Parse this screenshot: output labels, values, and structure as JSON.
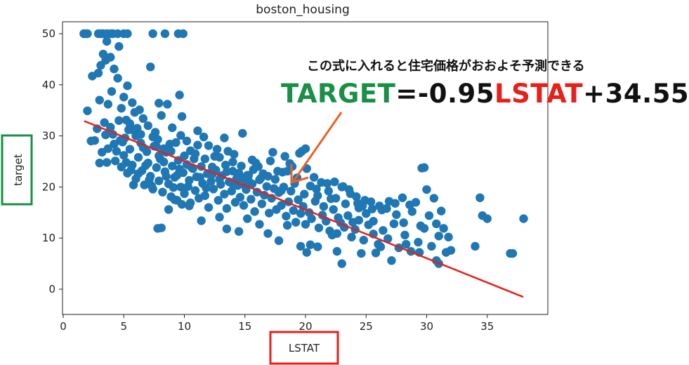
{
  "annotation": {
    "caption": "この式に入れると住宅価格がおおよそ予測できる",
    "equation": {
      "target_word": "TARGET",
      "op1": "=-0.95",
      "lstat_word": "LSTAT",
      "op2": "+34.55"
    },
    "colors": {
      "target": "#1a8f45",
      "lstat": "#e8201a",
      "arrow": "#e8622a",
      "ylabel_box": "#1a8f45",
      "xlabel_box": "#e8201a"
    }
  },
  "chart_data": {
    "type": "scatter",
    "title": "boston_housing",
    "xlabel": "LSTAT",
    "ylabel": "target",
    "xlim": [
      0,
      40
    ],
    "ylim": [
      -5,
      52
    ],
    "xticks": [
      0,
      5,
      10,
      15,
      20,
      25,
      30,
      35
    ],
    "yticks": [
      0,
      10,
      20,
      30,
      40,
      50
    ],
    "point_color": "#1f77b4",
    "line_color": "#e8201a",
    "regression": {
      "slope": -0.95,
      "intercept": 34.55,
      "x_range": [
        1.73,
        37.97
      ]
    },
    "points": [
      [
        1.7,
        50
      ],
      [
        1.9,
        50
      ],
      [
        2.0,
        50
      ],
      [
        2.9,
        50
      ],
      [
        3.1,
        50
      ],
      [
        3.3,
        50
      ],
      [
        3.6,
        50
      ],
      [
        3.9,
        50
      ],
      [
        4.1,
        50
      ],
      [
        4.5,
        50
      ],
      [
        5.0,
        50
      ],
      [
        5.3,
        50
      ],
      [
        7.4,
        50
      ],
      [
        8.4,
        50
      ],
      [
        9.5,
        50
      ],
      [
        9.9,
        50
      ],
      [
        2.0,
        34.9
      ],
      [
        2.4,
        41.7
      ],
      [
        2.9,
        42.3
      ],
      [
        3.0,
        37.0
      ],
      [
        3.1,
        43.8
      ],
      [
        3.3,
        46.0
      ],
      [
        3.5,
        44.8
      ],
      [
        3.6,
        48.5
      ],
      [
        3.7,
        36.2
      ],
      [
        3.9,
        45.4
      ],
      [
        4.0,
        38.7
      ],
      [
        4.2,
        43.1
      ],
      [
        4.5,
        41.3
      ],
      [
        4.6,
        47.5
      ],
      [
        4.8,
        35.4
      ],
      [
        5.0,
        37.6
      ],
      [
        5.2,
        33.1
      ],
      [
        5.3,
        39.8
      ],
      [
        5.5,
        32.4
      ],
      [
        5.7,
        36.5
      ],
      [
        5.9,
        34.6
      ],
      [
        6.1,
        31.5
      ],
      [
        6.3,
        35.1
      ],
      [
        6.6,
        33.4
      ],
      [
        7.0,
        32.0
      ],
      [
        7.2,
        43.5
      ],
      [
        7.4,
        29.8
      ],
      [
        7.6,
        30.7
      ],
      [
        7.9,
        36.4
      ],
      [
        8.1,
        34.0
      ],
      [
        8.3,
        27.5
      ],
      [
        8.6,
        36.2
      ],
      [
        9.0,
        31.6
      ],
      [
        9.3,
        28.7
      ],
      [
        9.6,
        38.0
      ],
      [
        9.8,
        33.8
      ],
      [
        10.2,
        29.0
      ],
      [
        10.5,
        27.1
      ],
      [
        11.1,
        31.0
      ],
      [
        12.0,
        28.1
      ],
      [
        12.7,
        27.4
      ],
      [
        13.3,
        29.6
      ],
      [
        14.0,
        24.9
      ],
      [
        14.8,
        30.5
      ],
      [
        15.6,
        25.3
      ],
      [
        2.6,
        29.1
      ],
      [
        3.2,
        26.8
      ],
      [
        3.5,
        30.2
      ],
      [
        3.6,
        24.8
      ],
      [
        3.9,
        31.7
      ],
      [
        4.2,
        28.4
      ],
      [
        4.4,
        27.0
      ],
      [
        4.6,
        33.0
      ],
      [
        4.8,
        23.9
      ],
      [
        5.0,
        26.2
      ],
      [
        5.1,
        29.6
      ],
      [
        5.3,
        22.7
      ],
      [
        5.5,
        27.4
      ],
      [
        5.7,
        24.3
      ],
      [
        5.8,
        31.1
      ],
      [
        6.0,
        21.6
      ],
      [
        6.2,
        25.8
      ],
      [
        6.4,
        28.6
      ],
      [
        6.5,
        23.2
      ],
      [
        6.7,
        20.4
      ],
      [
        6.9,
        26.9
      ],
      [
        7.0,
        24.7
      ],
      [
        7.2,
        22.1
      ],
      [
        7.4,
        19.6
      ],
      [
        7.5,
        28.0
      ],
      [
        7.7,
        23.8
      ],
      [
        7.9,
        21.2
      ],
      [
        8.0,
        25.5
      ],
      [
        8.2,
        19.0
      ],
      [
        8.4,
        23.0
      ],
      [
        8.5,
        26.8
      ],
      [
        8.7,
        20.6
      ],
      [
        8.9,
        18.1
      ],
      [
        9.0,
        24.1
      ],
      [
        9.2,
        21.9
      ],
      [
        9.4,
        17.4
      ],
      [
        9.5,
        25.2
      ],
      [
        9.7,
        20.0
      ],
      [
        9.9,
        22.8
      ],
      [
        10.0,
        18.7
      ],
      [
        10.2,
        24.4
      ],
      [
        10.4,
        21.3
      ],
      [
        10.5,
        16.9
      ],
      [
        10.7,
        23.6
      ],
      [
        10.9,
        19.3
      ],
      [
        11.0,
        22.0
      ],
      [
        11.2,
        17.8
      ],
      [
        11.4,
        24.0
      ],
      [
        11.5,
        20.7
      ],
      [
        11.7,
        18.3
      ],
      [
        11.9,
        22.6
      ],
      [
        12.0,
        16.0
      ],
      [
        12.2,
        21.1
      ],
      [
        12.4,
        19.6
      ],
      [
        12.6,
        23.3
      ],
      [
        12.8,
        17.4
      ],
      [
        13.0,
        20.5
      ],
      [
        13.1,
        22.2
      ],
      [
        13.3,
        18.6
      ],
      [
        13.5,
        15.8
      ],
      [
        13.7,
        21.0
      ],
      [
        13.9,
        19.2
      ],
      [
        14.0,
        23.1
      ],
      [
        14.2,
        17.0
      ],
      [
        14.4,
        20.3
      ],
      [
        14.6,
        18.0
      ],
      [
        14.7,
        21.7
      ],
      [
        14.9,
        16.4
      ],
      [
        15.1,
        19.5
      ],
      [
        15.3,
        22.3
      ],
      [
        15.5,
        17.6
      ],
      [
        15.6,
        20.6
      ],
      [
        15.8,
        15.2
      ],
      [
        16.0,
        19.0
      ],
      [
        16.2,
        21.4
      ],
      [
        16.4,
        16.7
      ],
      [
        16.6,
        18.4
      ],
      [
        16.8,
        20.1
      ],
      [
        17.0,
        14.9
      ],
      [
        17.2,
        17.8
      ],
      [
        17.4,
        19.7
      ],
      [
        17.6,
        15.6
      ],
      [
        17.8,
        18.9
      ],
      [
        18.0,
        16.4
      ],
      [
        18.2,
        20.0
      ],
      [
        18.4,
        14.3
      ],
      [
        18.6,
        17.1
      ],
      [
        18.8,
        19.2
      ],
      [
        19.0,
        15.4
      ],
      [
        19.2,
        13.1
      ],
      [
        19.4,
        17.5
      ],
      [
        19.6,
        14.8
      ],
      [
        19.8,
        16.2
      ],
      [
        20.0,
        12.7
      ],
      [
        20.3,
        15.0
      ],
      [
        20.5,
        13.8
      ],
      [
        20.8,
        17.2
      ],
      [
        21.1,
        12.0
      ],
      [
        21.4,
        14.5
      ],
      [
        21.7,
        13.3
      ],
      [
        22.0,
        11.4
      ],
      [
        22.3,
        15.6
      ],
      [
        22.6,
        10.9
      ],
      [
        22.9,
        13.0
      ],
      [
        23.2,
        12.1
      ],
      [
        23.5,
        14.4
      ],
      [
        23.8,
        10.2
      ],
      [
        24.1,
        11.7
      ],
      [
        24.4,
        13.5
      ],
      [
        24.8,
        9.6
      ],
      [
        25.2,
        12.6
      ],
      [
        25.6,
        10.8
      ],
      [
        26.0,
        8.8
      ],
      [
        26.4,
        11.5
      ],
      [
        26.8,
        9.9
      ],
      [
        27.3,
        12.8
      ],
      [
        27.7,
        8.1
      ],
      [
        28.2,
        10.6
      ],
      [
        28.7,
        7.4
      ],
      [
        29.3,
        9.2
      ],
      [
        29.8,
        11.9
      ],
      [
        30.4,
        8.4
      ],
      [
        31.0,
        10.4
      ],
      [
        31.6,
        7.2
      ],
      [
        3.0,
        24.7
      ],
      [
        3.7,
        27.5
      ],
      [
        4.3,
        25.1
      ],
      [
        4.9,
        28.8
      ],
      [
        5.6,
        23.3
      ],
      [
        6.2,
        22.6
      ],
      [
        6.8,
        24.2
      ],
      [
        7.3,
        20.2
      ],
      [
        7.9,
        26.1
      ],
      [
        8.5,
        22.1
      ],
      [
        9.1,
        19.9
      ],
      [
        9.6,
        23.5
      ],
      [
        10.3,
        20.1
      ],
      [
        10.8,
        25.5
      ],
      [
        11.3,
        21.9
      ],
      [
        11.8,
        19.8
      ],
      [
        12.3,
        23.9
      ],
      [
        12.9,
        21.5
      ],
      [
        13.4,
        24.3
      ],
      [
        13.9,
        20.8
      ],
      [
        14.5,
        22.7
      ],
      [
        15.0,
        20.3
      ],
      [
        15.7,
        23.4
      ],
      [
        16.3,
        21.7
      ],
      [
        16.9,
        22.1
      ],
      [
        17.5,
        21.5
      ],
      [
        18.1,
        22.9
      ],
      [
        18.7,
        24.6
      ],
      [
        19.3,
        21.8
      ],
      [
        19.9,
        18.6
      ],
      [
        20.4,
        20.2
      ],
      [
        21.0,
        18.3
      ],
      [
        21.5,
        16.2
      ],
      [
        22.1,
        17.7
      ],
      [
        22.7,
        14.0
      ],
      [
        23.3,
        16.7
      ],
      [
        23.9,
        13.1
      ],
      [
        24.4,
        15.9
      ],
      [
        25.0,
        14.8
      ],
      [
        25.6,
        13.3
      ],
      [
        26.3,
        15.5
      ],
      [
        26.9,
        17.2
      ],
      [
        27.5,
        14.6
      ],
      [
        28.1,
        13.0
      ],
      [
        28.8,
        15.2
      ],
      [
        29.5,
        12.4
      ],
      [
        30.2,
        14.4
      ],
      [
        30.8,
        12.8
      ],
      [
        31.4,
        11.9
      ],
      [
        5.2,
        24.8
      ],
      [
        5.8,
        20.4
      ],
      [
        6.4,
        30.3
      ],
      [
        7.1,
        21.4
      ],
      [
        7.7,
        27.9
      ],
      [
        8.3,
        24.9
      ],
      [
        8.9,
        27.0
      ],
      [
        9.4,
        22.3
      ],
      [
        10.0,
        26.1
      ],
      [
        10.6,
        23.8
      ],
      [
        11.1,
        28.2
      ],
      [
        11.7,
        25.5
      ],
      [
        12.3,
        22.5
      ],
      [
        12.9,
        25.8
      ],
      [
        13.5,
        23.0
      ],
      [
        14.1,
        26.4
      ],
      [
        14.7,
        24.1
      ],
      [
        15.3,
        21.2
      ],
      [
        15.9,
        24.7
      ],
      [
        16.5,
        22.6
      ],
      [
        17.1,
        25.1
      ],
      [
        17.7,
        23.1
      ],
      [
        18.3,
        26.0
      ],
      [
        18.9,
        24.0
      ],
      [
        19.5,
        26.6
      ],
      [
        20.1,
        23.6
      ],
      [
        20.7,
        21.9
      ],
      [
        21.3,
        20.9
      ],
      [
        21.9,
        19.2
      ],
      [
        22.5,
        17.8
      ],
      [
        23.1,
        20.1
      ],
      [
        23.7,
        18.7
      ],
      [
        24.3,
        16.8
      ],
      [
        24.9,
        17.4
      ],
      [
        25.5,
        15.7
      ],
      [
        2.3,
        29.0
      ],
      [
        2.8,
        31.4
      ],
      [
        3.4,
        32.6
      ],
      [
        4.1,
        30.3
      ],
      [
        4.7,
        29.1
      ],
      [
        5.4,
        31.2
      ],
      [
        6.0,
        30.0
      ],
      [
        6.6,
        27.7
      ],
      [
        7.8,
        29.3
      ],
      [
        8.8,
        28.4
      ],
      [
        9.7,
        30.1
      ],
      [
        10.9,
        26.5
      ],
      [
        11.6,
        29.8
      ],
      [
        12.5,
        26.0
      ],
      [
        13.6,
        27.0
      ],
      [
        14.3,
        21.6
      ],
      [
        15.2,
        22.3
      ],
      [
        16.1,
        24.0
      ],
      [
        17.3,
        26.8
      ],
      [
        18.0,
        19.3
      ],
      [
        18.5,
        23.1
      ],
      [
        19.1,
        20.7
      ],
      [
        19.7,
        27.0
      ],
      [
        20.0,
        27.5
      ],
      [
        20.9,
        19.6
      ],
      [
        21.8,
        20.7
      ],
      [
        22.4,
        21.0
      ],
      [
        23.0,
        20.0
      ],
      [
        23.6,
        19.5
      ],
      [
        24.2,
        18.1
      ],
      [
        24.7,
        16.3
      ],
      [
        25.4,
        17.1
      ],
      [
        26.1,
        16.3
      ],
      [
        26.7,
        15.8
      ],
      [
        27.4,
        16.8
      ],
      [
        28.0,
        17.9
      ],
      [
        28.6,
        16.5
      ],
      [
        29.1,
        17.0
      ],
      [
        29.6,
        23.7
      ],
      [
        29.8,
        23.8
      ],
      [
        30.0,
        19.5
      ],
      [
        30.6,
        17.8
      ],
      [
        31.2,
        15.3
      ],
      [
        32.0,
        7.6
      ],
      [
        34.0,
        8.4
      ],
      [
        34.4,
        17.9
      ],
      [
        34.6,
        14.4
      ],
      [
        35.0,
        13.8
      ],
      [
        36.9,
        7.0
      ],
      [
        37.1,
        7.0
      ],
      [
        38.0,
        13.8
      ],
      [
        7.8,
        11.9
      ],
      [
        8.1,
        12.0
      ],
      [
        22.2,
        10.6
      ],
      [
        22.6,
        7.4
      ],
      [
        23.0,
        5.0
      ],
      [
        24.6,
        7.0
      ],
      [
        25.8,
        7.1
      ],
      [
        26.2,
        8.3
      ],
      [
        27.1,
        5.6
      ],
      [
        28.3,
        8.8
      ],
      [
        29.4,
        7.2
      ],
      [
        30.8,
        5.6
      ],
      [
        31.0,
        5.0
      ],
      [
        31.8,
        10.2
      ],
      [
        21.0,
        8.3
      ],
      [
        20.4,
        8.7
      ],
      [
        20.1,
        7.2
      ],
      [
        19.6,
        8.4
      ],
      [
        18.5,
        12.5
      ],
      [
        17.8,
        9.5
      ],
      [
        16.9,
        10.9
      ],
      [
        16.2,
        12.7
      ],
      [
        15.2,
        13.8
      ],
      [
        14.5,
        11.3
      ],
      [
        13.5,
        11.8
      ],
      [
        12.9,
        14.1
      ],
      [
        11.4,
        13.4
      ],
      [
        10.4,
        16.3
      ],
      [
        9.8,
        16.6
      ],
      [
        9.2,
        17.5
      ],
      [
        8.7,
        15.6
      ]
    ]
  }
}
